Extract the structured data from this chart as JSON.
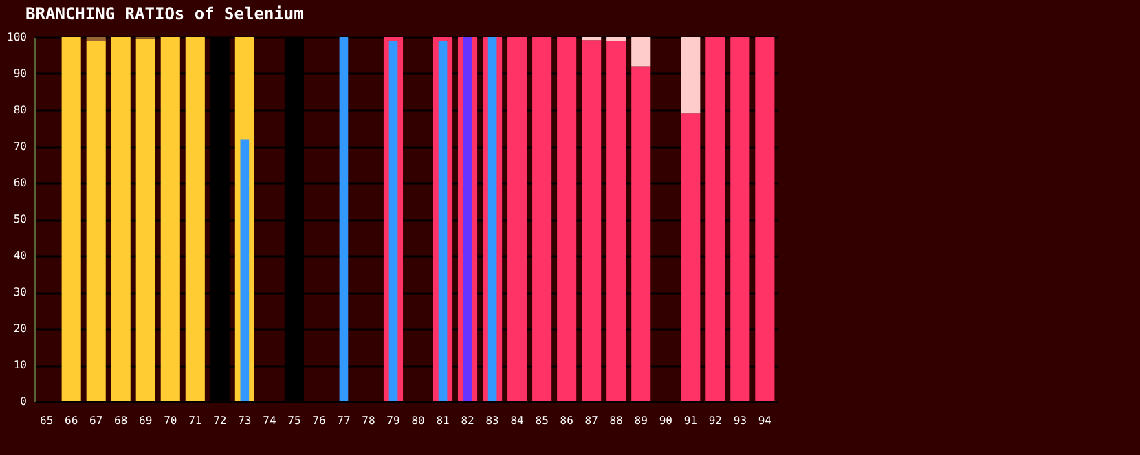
{
  "chart_data": {
    "type": "bar",
    "title": "BRANCHING RATIOs of Selenium",
    "categories": [
      "65",
      "66",
      "67",
      "68",
      "69",
      "70",
      "71",
      "72",
      "73",
      "74",
      "75",
      "76",
      "77",
      "78",
      "79",
      "80",
      "81",
      "82",
      "83",
      "84",
      "85",
      "86",
      "87",
      "88",
      "89",
      "90",
      "91",
      "92",
      "93",
      "94"
    ],
    "series": [
      {
        "color": "#ffcc33",
        "values": [
          null,
          100,
          99,
          100,
          99.5,
          100,
          100,
          null,
          100,
          null,
          null,
          null,
          null,
          null,
          null,
          null,
          null,
          null,
          null,
          null,
          null,
          null,
          null,
          null,
          null,
          null,
          null,
          null,
          null,
          null
        ]
      },
      {
        "color": "#996633",
        "values": [
          null,
          null,
          1,
          null,
          0.5,
          null,
          null,
          null,
          null,
          null,
          null,
          null,
          null,
          null,
          null,
          null,
          null,
          null,
          null,
          null,
          null,
          null,
          null,
          null,
          null,
          null,
          null,
          null,
          null,
          null
        ],
        "base": [
          null,
          null,
          99,
          null,
          99.5,
          null,
          null,
          null,
          null,
          null,
          null,
          null,
          null,
          null,
          null,
          null,
          null,
          null,
          null,
          null,
          null,
          null,
          null,
          null,
          null,
          null,
          null,
          null,
          null,
          null
        ]
      },
      {
        "color": "#000000",
        "values": [
          null,
          null,
          null,
          null,
          null,
          null,
          null,
          100,
          null,
          null,
          100,
          null,
          null,
          null,
          null,
          null,
          null,
          null,
          null,
          null,
          null,
          null,
          null,
          null,
          null,
          null,
          null,
          null,
          null,
          null
        ]
      },
      {
        "color": "#ff3366",
        "values": [
          null,
          null,
          null,
          null,
          null,
          null,
          null,
          null,
          null,
          null,
          null,
          null,
          null,
          null,
          100,
          null,
          100,
          100,
          100,
          100,
          100,
          100,
          99.2,
          99,
          92,
          null,
          79,
          100,
          100,
          100
        ]
      },
      {
        "color": "#ffcccc",
        "values": [
          null,
          null,
          null,
          null,
          null,
          null,
          null,
          null,
          null,
          null,
          null,
          null,
          null,
          null,
          null,
          null,
          null,
          null,
          null,
          null,
          null,
          null,
          0.8,
          1,
          8,
          null,
          21,
          null,
          null,
          null
        ],
        "base": [
          null,
          null,
          null,
          null,
          null,
          null,
          null,
          null,
          null,
          null,
          null,
          null,
          null,
          null,
          null,
          null,
          null,
          null,
          null,
          null,
          null,
          null,
          99.2,
          99,
          92,
          null,
          79,
          null,
          null,
          null
        ]
      },
      {
        "color": "#3399ff",
        "values": [
          null,
          null,
          null,
          null,
          null,
          null,
          null,
          null,
          72,
          null,
          null,
          null,
          100,
          null,
          99,
          null,
          99,
          null,
          100,
          null,
          null,
          null,
          null,
          null,
          null,
          null,
          null,
          null,
          null,
          null
        ]
      },
      {
        "color": "#6633ff",
        "values": [
          null,
          null,
          null,
          null,
          null,
          null,
          null,
          null,
          null,
          null,
          null,
          null,
          null,
          null,
          null,
          null,
          null,
          100,
          null,
          null,
          null,
          null,
          null,
          null,
          null,
          null,
          null,
          null,
          null,
          null
        ]
      }
    ],
    "ylim": [
      0,
      100
    ],
    "yticks": [
      0,
      10,
      20,
      30,
      40,
      50,
      60,
      70,
      80,
      90,
      100
    ],
    "grid": "y"
  }
}
